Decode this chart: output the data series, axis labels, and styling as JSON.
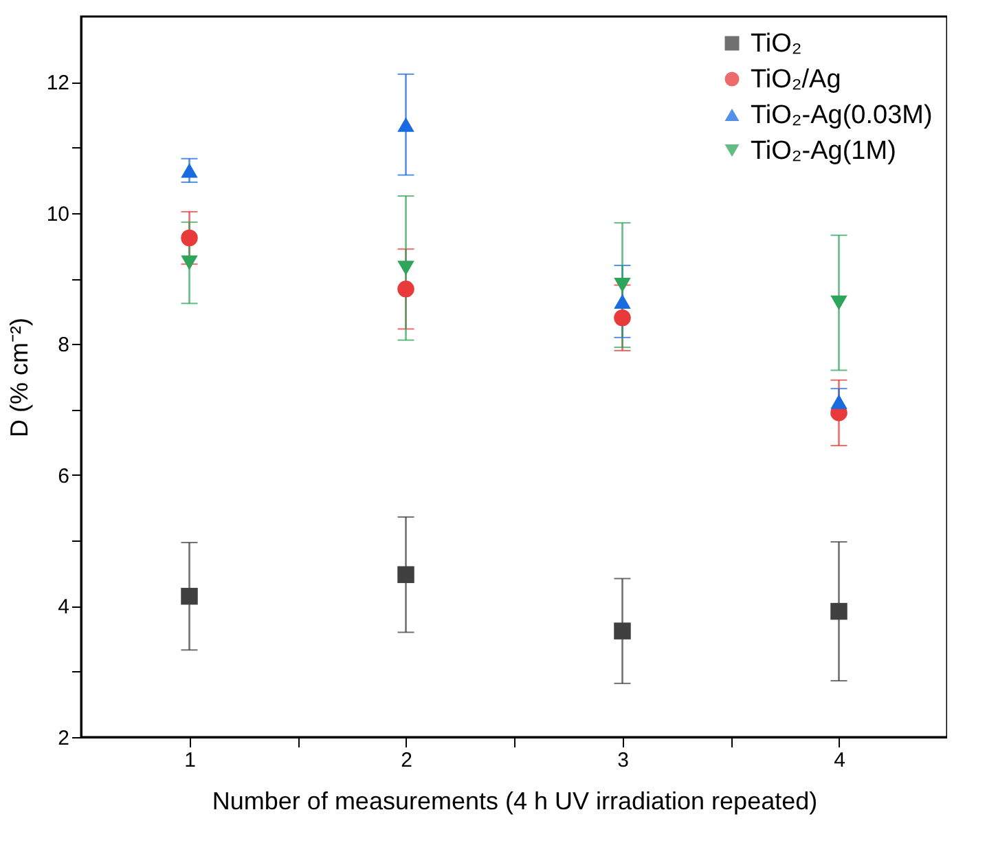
{
  "chart_data": {
    "type": "scatter",
    "xlabel": "Number of measurements (4 h UV irradiation repeated)",
    "ylabel": "D (% cm⁻²)",
    "x": [
      1,
      2,
      3,
      4
    ],
    "xlim": [
      0.5,
      4.5
    ],
    "xticks": [
      1,
      {
        "value": 1.5,
        "label": null
      },
      2,
      {
        "value": 2.5,
        "label": null
      },
      3,
      {
        "value": 3.5,
        "label": null
      },
      4
    ],
    "ylim": [
      2,
      13
    ],
    "yticks": [
      2,
      {
        "value": 3,
        "label": null
      },
      4,
      {
        "value": 5,
        "label": null
      },
      6,
      {
        "value": 7,
        "label": null
      },
      8,
      {
        "value": 9,
        "label": null
      },
      10,
      {
        "value": 11,
        "label": null
      },
      12
    ],
    "grid": false,
    "legend": "top right",
    "series": [
      {
        "name": "TiO₂",
        "color": "#404040",
        "marker": "square",
        "values": [
          4.15,
          4.48,
          3.62,
          3.92
        ],
        "errors": [
          0.82,
          0.88,
          0.8,
          1.06
        ]
      },
      {
        "name": "TiO₂/Ag",
        "color": "#e8393b",
        "marker": "circle",
        "values": [
          9.62,
          8.84,
          8.4,
          6.95
        ],
        "errors": [
          0.4,
          0.61,
          0.5,
          0.5
        ]
      },
      {
        "name": "TiO₂-Ag(0.03M)",
        "color": "#1a6be0",
        "marker": "triangle",
        "values": [
          10.65,
          11.35,
          8.65,
          7.12
        ],
        "errors": [
          0.18,
          0.77,
          0.55,
          0.2
        ]
      },
      {
        "name": "TiO₂-Ag(1M)",
        "color": "#2ea55a",
        "marker": "triangle-down",
        "values": [
          9.24,
          9.16,
          8.9,
          8.63
        ],
        "errors": [
          0.62,
          1.1,
          0.95,
          1.03
        ]
      }
    ]
  }
}
